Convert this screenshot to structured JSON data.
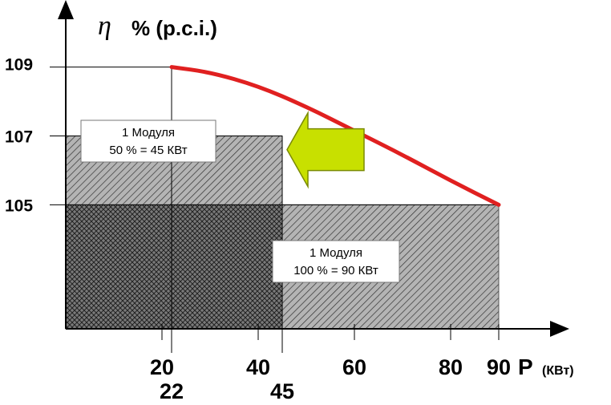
{
  "colors": {
    "curve": "#e02020",
    "arrow_fill": "#c8e000",
    "arrow_stroke": "#7a8a00",
    "hatch_bg": "#b4b4b4",
    "hatch_dark_bg": "#7a7a7a"
  },
  "chart_data": {
    "type": "area",
    "ylabel_symbol": "η",
    "ylabel_text": "% (p.c.i.)",
    "xlabel_main": "P",
    "xlabel_unit": "(КВт)",
    "xlim": [
      0,
      100
    ],
    "ylim": [
      101.4,
      109.2
    ],
    "x_ticks": [
      {
        "value": 20,
        "label": "20",
        "row": 1
      },
      {
        "value": 22,
        "label": "22",
        "row": 2
      },
      {
        "value": 40,
        "label": "40",
        "row": 1
      },
      {
        "value": 45,
        "label": "45",
        "row": 2
      },
      {
        "value": 60,
        "label": "60",
        "row": 1
      },
      {
        "value": 80,
        "label": "80",
        "row": 1
      },
      {
        "value": 90,
        "label": "90",
        "row": 1
      }
    ],
    "y_ticks": [
      {
        "value": 109,
        "label": "109"
      },
      {
        "value": 107,
        "label": "107"
      },
      {
        "value": 105,
        "label": "105"
      }
    ],
    "regions": [
      {
        "name": "module-half-load",
        "x": [
          0,
          45
        ],
        "y": [
          101.4,
          107
        ],
        "label_line1": "1 Модуля",
        "label_line2": "50 % = 45 КВт"
      },
      {
        "name": "module-full-load",
        "x": [
          0,
          90
        ],
        "y": [
          101.4,
          105
        ],
        "label_line1": "1 Модуля",
        "label_line2": "100 % = 90 КВт"
      }
    ],
    "curve": {
      "x": [
        22,
        30,
        40,
        50,
        60,
        70,
        80,
        90
      ],
      "y": [
        109,
        108.85,
        108.45,
        107.85,
        107.15,
        106.45,
        105.7,
        105
      ]
    },
    "arrow": {
      "direction": "left",
      "x_from": 62,
      "x_to": 46,
      "y": 106.6
    }
  }
}
